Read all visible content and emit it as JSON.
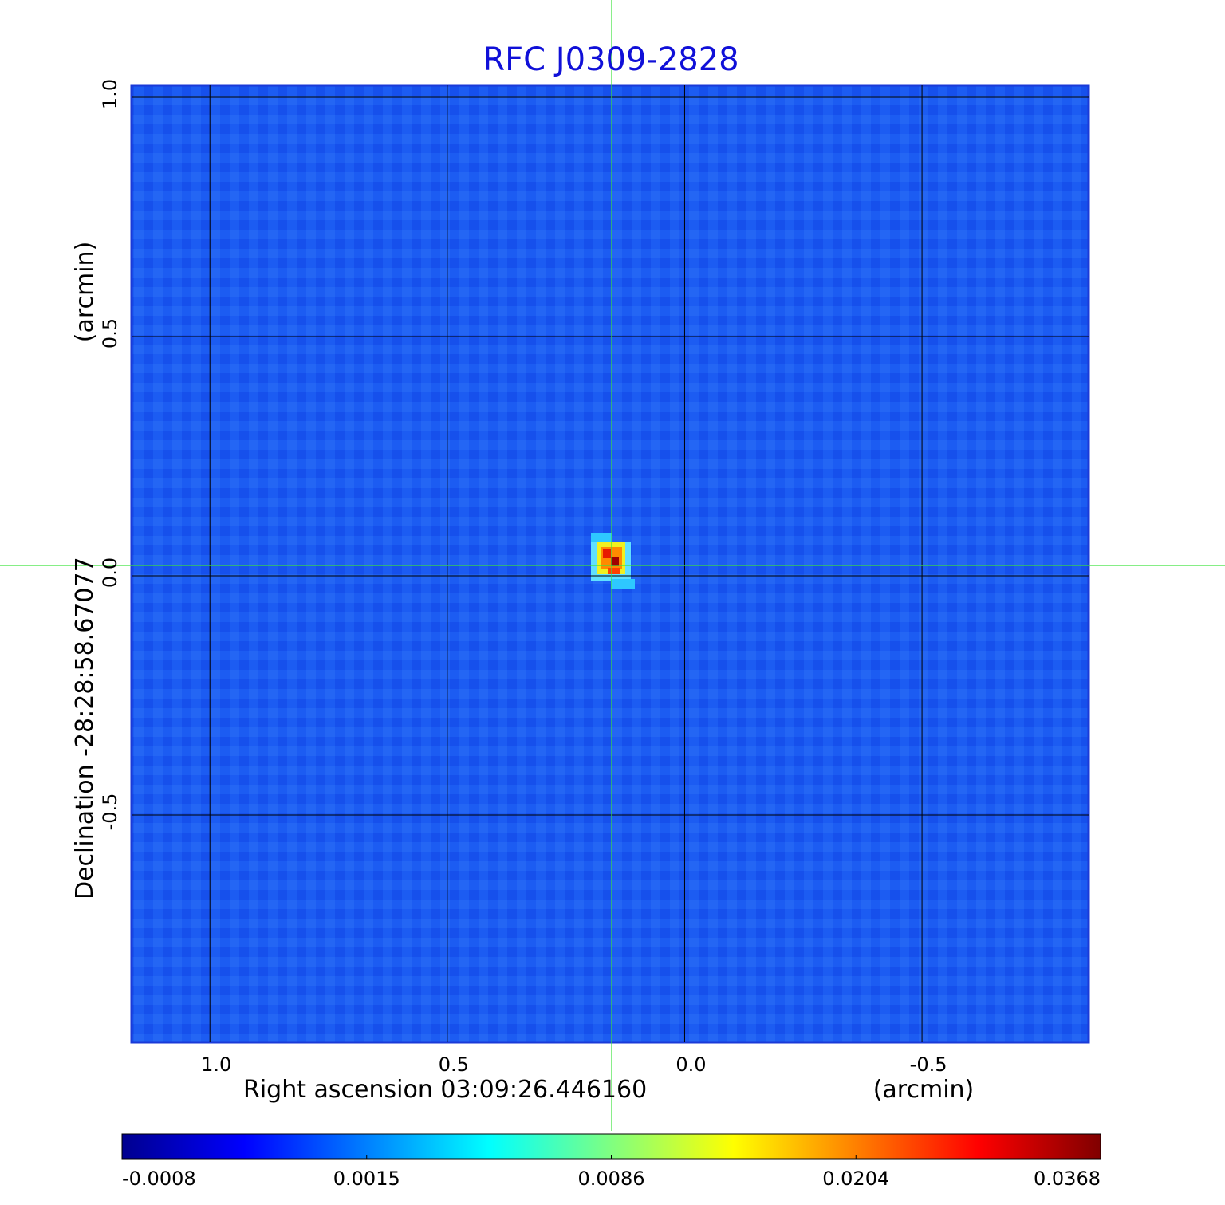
{
  "chart_data": {
    "type": "image",
    "title": "RFC J0309-2828",
    "xlabel": "Right ascension  03:09:26.446160",
    "xunit": "(arcmin)",
    "ylabel": "Declination  -28:28:58.67077",
    "yunit": "(arcmin)",
    "xlim": [
      1.165,
      -0.851
    ],
    "ylim": [
      -0.975,
      1.025
    ],
    "xticks": [
      {
        "value": 1,
        "label": "1.0"
      },
      {
        "value": 0.5,
        "label": "0.5"
      },
      {
        "value": 0,
        "label": "0.0"
      },
      {
        "value": -0.5,
        "label": "-0.5"
      }
    ],
    "yticks": [
      {
        "value": 1,
        "label": "1.0"
      },
      {
        "value": 0.5,
        "label": "0.5"
      },
      {
        "value": 0,
        "label": "0.0"
      },
      {
        "value": -0.5,
        "label": "-0.5"
      }
    ],
    "grid": true,
    "colorbar": {
      "ticks": [
        -0.0008,
        0.0015,
        0.0086,
        0.0204,
        0.0368
      ],
      "colors": [
        "#00008f",
        "#0000ff",
        "#0080ff",
        "#00ffff",
        "#80ff80",
        "#ffff00",
        "#ff8000",
        "#ff0000",
        "#800000"
      ]
    }
  }
}
